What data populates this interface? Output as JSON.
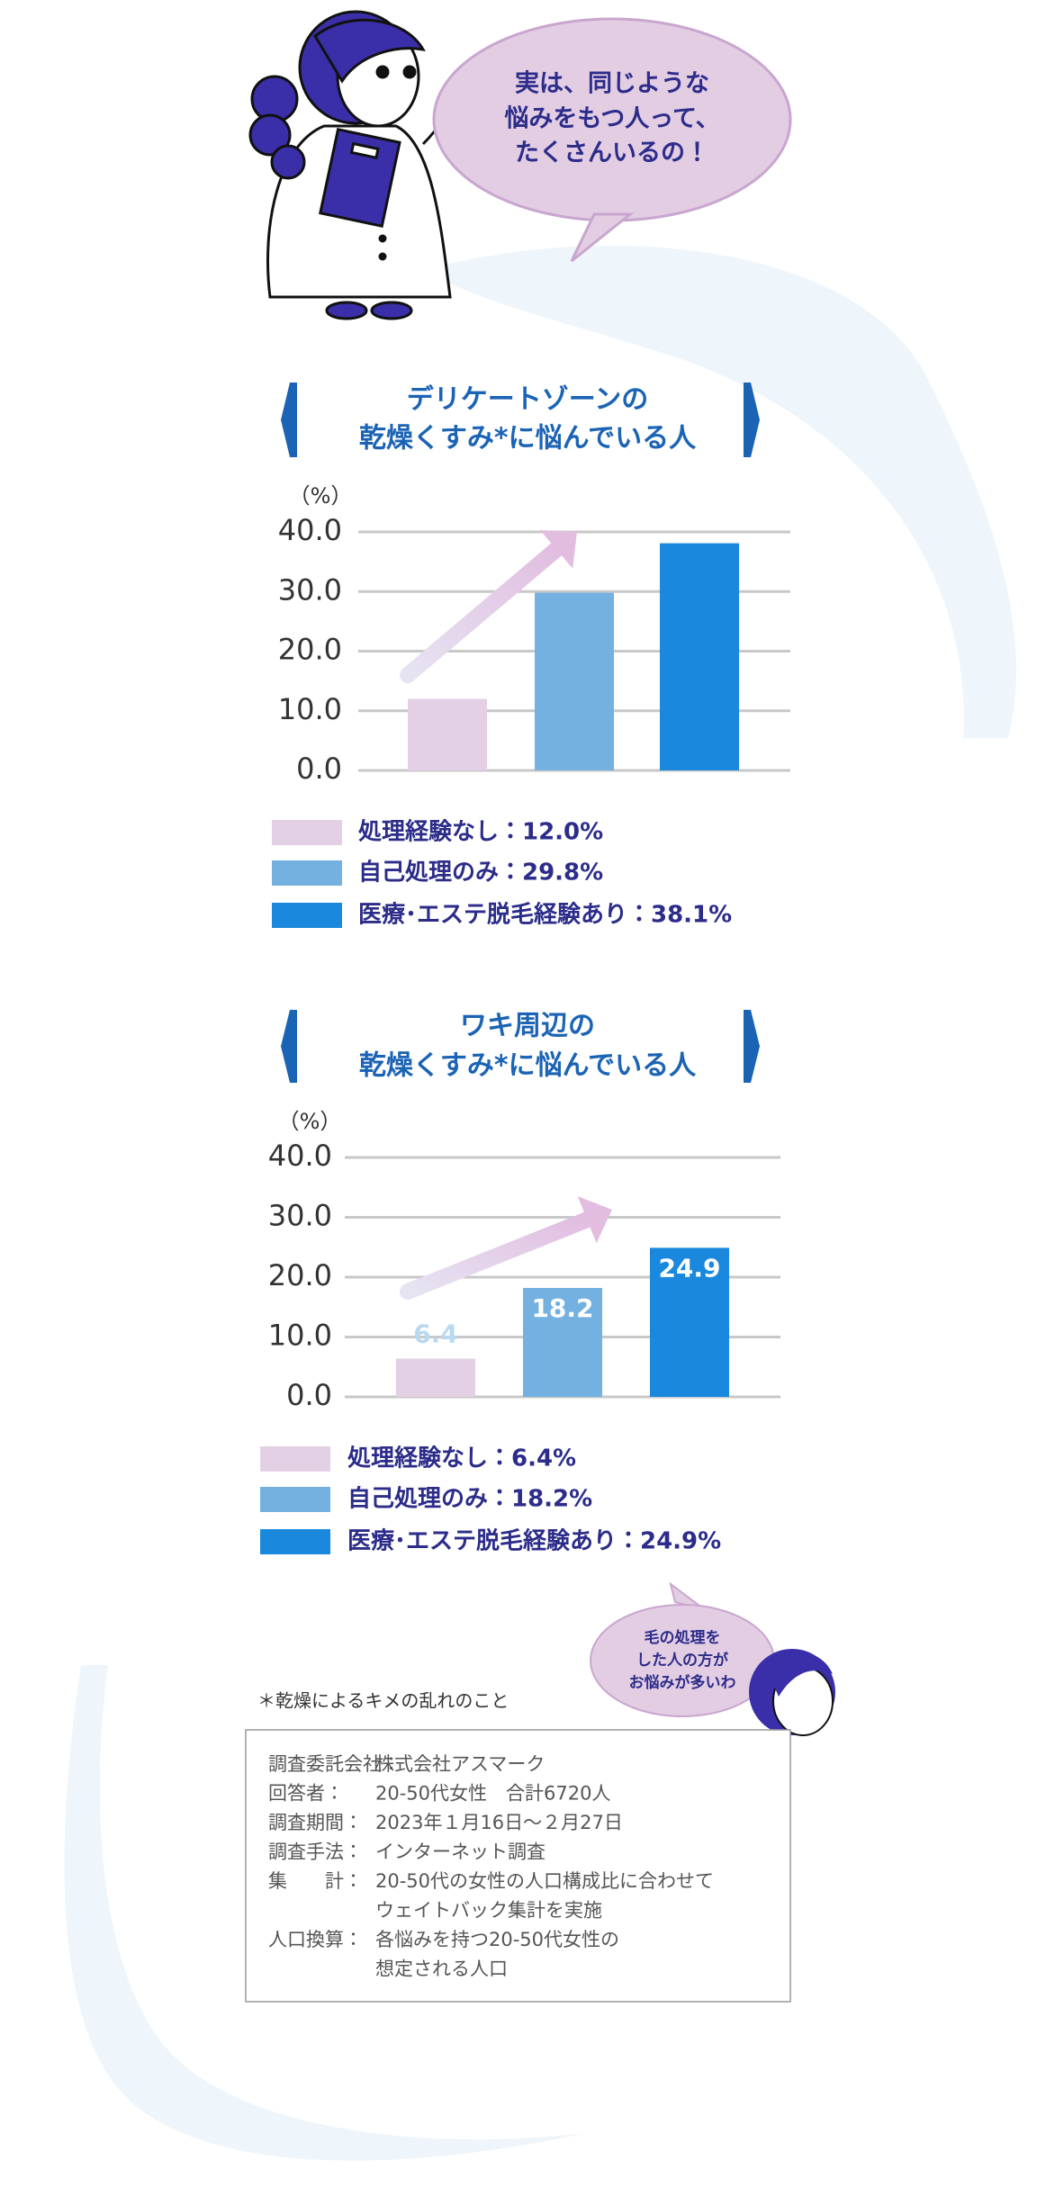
{
  "speech_bubble": [
    "実は、同じような",
    "悩みをもつ人って、",
    "たくさんいるの！"
  ],
  "chart_data": [
    {
      "type": "bar",
      "title": [
        "デリケートゾーンの",
        "乾燥くすみ*に悩んでいる人"
      ],
      "y_label": "（%）",
      "categories": [
        "処理経験なし：12.0%",
        "自己処理のみ：29.8%",
        "医療･エステ脱毛経験あり：38.1%"
      ],
      "values": [
        12.0,
        29.8,
        38.1
      ],
      "colors": [
        "#e4d0e4",
        "#74b1e0",
        "#1a88dc"
      ],
      "ylim": [
        0,
        40
      ],
      "yticks": [
        {
          "value": 0,
          "label": "0.0"
        },
        {
          "value": 10,
          "label": "10.0"
        },
        {
          "value": 20,
          "label": "20.0"
        },
        {
          "value": 30,
          "label": "30.0"
        },
        {
          "value": 40,
          "label": "40.0"
        }
      ],
      "grid": true
    },
    {
      "type": "bar",
      "title": [
        "ワキ周辺の",
        "乾燥くすみ*に悩んでいる人"
      ],
      "y_label": "（%）",
      "categories": [
        "処理経験なし：6.4%",
        "自己処理のみ：18.2%",
        "医療･エステ脱毛経験あり：24.9%"
      ],
      "values": [
        6.4,
        18.2,
        24.9
      ],
      "colors": [
        "#e4d0e4",
        "#74b1e0",
        "#1a88dc"
      ],
      "ylim": [
        0,
        40
      ],
      "yticks": [
        {
          "value": 0,
          "label": "0.0"
        },
        {
          "value": 10,
          "label": "10.0"
        },
        {
          "value": 20,
          "label": "20.0"
        },
        {
          "value": 30,
          "label": "30.0"
        },
        {
          "value": 40,
          "label": "40.0"
        }
      ],
      "grid": true,
      "data_labels": true
    }
  ],
  "small_bubble": [
    "毛の処理を",
    "した人の方が",
    "お悩みが多いわ"
  ],
  "note": "＊乾燥によるキメの乱れのこと",
  "survey": [
    {
      "label": "調査委託会社：",
      "lines": [
        "株式会社アスマーク"
      ]
    },
    {
      "label": "回答者：",
      "lines": [
        "20-50代女性　合計6720人"
      ]
    },
    {
      "label": "調査期間：",
      "lines": [
        "2023年１月16日～２月27日"
      ]
    },
    {
      "label": "調査手法：",
      "lines": [
        "インターネット調査"
      ]
    },
    {
      "label": "集　　計：",
      "lines": [
        "20-50代の女性の人口構成比に合わせて",
        "ウェイトバック集計を実施"
      ]
    },
    {
      "label": "人口換算：",
      "lines": [
        "各悩みを持つ20-50代女性の",
        "想定される人口"
      ]
    }
  ]
}
